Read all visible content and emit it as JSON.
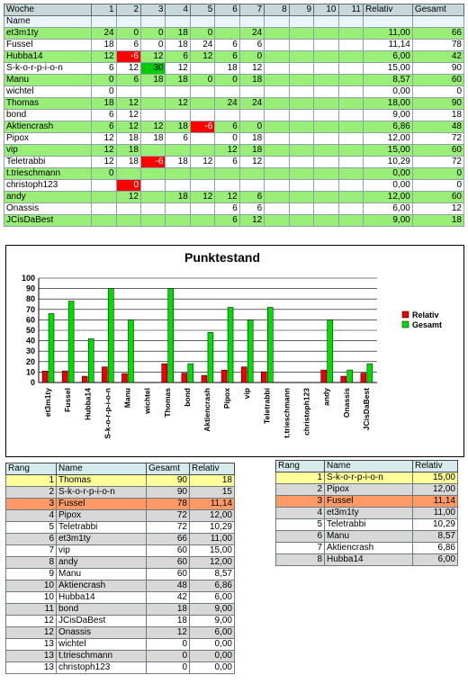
{
  "table": {
    "header": {
      "woche": "Woche",
      "weeks": [
        "1",
        "2",
        "3",
        "4",
        "5",
        "6",
        "7",
        "8",
        "9",
        "10",
        "11"
      ],
      "relativ": "Relativ",
      "gesamt": "Gesamt"
    },
    "name_label": "Name",
    "rows": [
      {
        "name": "et3m1ty",
        "cells": [
          "24",
          "0",
          "0",
          "18",
          "0",
          "",
          "24",
          "",
          "",
          "",
          ""
        ],
        "relativ": "11,00",
        "gesamt": "66"
      },
      {
        "name": "Fussel",
        "cells": [
          "18",
          "6",
          "0",
          "18",
          "24",
          "6",
          "6",
          "",
          "",
          "",
          ""
        ],
        "relativ": "11,14",
        "gesamt": "78"
      },
      {
        "name": "Hubba14",
        "cells": [
          "12",
          "-6",
          "12",
          "6",
          "12",
          "6",
          "0",
          "",
          "",
          "",
          ""
        ],
        "relativ": "6,00",
        "gesamt": "42"
      },
      {
        "name": "S-k-o-r-p-i-o-n",
        "cells": [
          "6",
          "12",
          "30",
          "12",
          "",
          "18",
          "12",
          "",
          "",
          "",
          ""
        ],
        "relativ": "15,00",
        "gesamt": "90"
      },
      {
        "name": "Manu",
        "cells": [
          "0",
          "6",
          "18",
          "18",
          "0",
          "0",
          "18",
          "",
          "",
          "",
          ""
        ],
        "relativ": "8,57",
        "gesamt": "60"
      },
      {
        "name": "wichtel",
        "cells": [
          "0",
          "",
          "",
          "",
          "",
          "",
          "",
          "",
          "",
          "",
          ""
        ],
        "relativ": "0,00",
        "gesamt": "0"
      },
      {
        "name": "Thomas",
        "cells": [
          "18",
          "12",
          "",
          "12",
          "",
          "24",
          "24",
          "",
          "",
          "",
          ""
        ],
        "relativ": "18,00",
        "gesamt": "90"
      },
      {
        "name": "bond",
        "cells": [
          "6",
          "12",
          "",
          "",
          "",
          "",
          "",
          "",
          "",
          "",
          ""
        ],
        "relativ": "9,00",
        "gesamt": "18"
      },
      {
        "name": "Aktiencrash",
        "cells": [
          "6",
          "12",
          "12",
          "18",
          "-6",
          "6",
          "0",
          "",
          "",
          "",
          ""
        ],
        "relativ": "6,86",
        "gesamt": "48"
      },
      {
        "name": "Pipox",
        "cells": [
          "12",
          "18",
          "18",
          "6",
          "",
          "0",
          "18",
          "",
          "",
          "",
          ""
        ],
        "relativ": "12,00",
        "gesamt": "72"
      },
      {
        "name": "vip",
        "cells": [
          "12",
          "18",
          "",
          "",
          "",
          "12",
          "18",
          "",
          "",
          "",
          ""
        ],
        "relativ": "15,00",
        "gesamt": "60"
      },
      {
        "name": "Teletrabbi",
        "cells": [
          "12",
          "18",
          "-6",
          "18",
          "12",
          "6",
          "12",
          "",
          "",
          "",
          ""
        ],
        "relativ": "10,29",
        "gesamt": "72"
      },
      {
        "name": "t.trieschmann",
        "cells": [
          "0",
          "",
          "",
          "",
          "",
          "",
          "",
          "",
          "",
          "",
          ""
        ],
        "relativ": "0,00",
        "gesamt": "0"
      },
      {
        "name": "christoph123",
        "cells": [
          "",
          "0",
          "",
          "",
          "",
          "",
          "",
          "",
          "",
          "",
          ""
        ],
        "relativ": "0,00",
        "gesamt": "0"
      },
      {
        "name": "andy",
        "cells": [
          "",
          "12",
          "",
          "18",
          "12",
          "12",
          "6",
          "",
          "",
          "",
          ""
        ],
        "relativ": "12,00",
        "gesamt": "60"
      },
      {
        "name": "Onassis",
        "cells": [
          "",
          "",
          "",
          "",
          "",
          "6",
          "6",
          "",
          "",
          "",
          ""
        ],
        "relativ": "6,00",
        "gesamt": "12"
      },
      {
        "name": "JCisDaBest",
        "cells": [
          "",
          "",
          "",
          "",
          "",
          "6",
          "12",
          "",
          "",
          "",
          ""
        ],
        "relativ": "9,00",
        "gesamt": "18"
      }
    ]
  },
  "chart_data": {
    "type": "bar",
    "title": "Punktestand",
    "categories": [
      "et3m1ty",
      "Fussel",
      "Hubba14",
      "S-k-o-r-p-i-o-n",
      "Manu",
      "wichtel",
      "Thomas",
      "bond",
      "Aktiencrash",
      "Pipox",
      "vip",
      "Teletrabbi",
      "t.trieschmann",
      "christoph123",
      "andy",
      "Onassis",
      "JCisDaBest"
    ],
    "series": [
      {
        "name": "Relativ",
        "color": "#ee0000",
        "values": [
          11,
          11.14,
          6,
          15,
          8.57,
          0,
          18,
          9,
          6.86,
          12,
          15,
          10.29,
          0,
          0,
          12,
          6,
          9
        ]
      },
      {
        "name": "Gesamt",
        "color": "#00dd00",
        "values": [
          66,
          78,
          42,
          90,
          60,
          0,
          90,
          18,
          48,
          72,
          60,
          72,
          0,
          0,
          60,
          12,
          18
        ]
      }
    ],
    "ylim": [
      0,
      100
    ],
    "yticks": [
      "0",
      "10",
      "20",
      "30",
      "40",
      "50",
      "60",
      "70",
      "80",
      "90",
      "100"
    ],
    "grid": true,
    "legend": "right"
  },
  "ranking_full": {
    "headers": {
      "rang": "Rang",
      "name": "Name",
      "gesamt": "Gesamt",
      "relativ": "Relativ"
    },
    "rows": [
      {
        "rang": "1",
        "name": "Thomas",
        "gesamt": "90",
        "relativ": "18"
      },
      {
        "rang": "2",
        "name": "S-k-o-r-p-i-o-n",
        "gesamt": "90",
        "relativ": "15"
      },
      {
        "rang": "3",
        "name": "Fussel",
        "gesamt": "78",
        "relativ": "11,14"
      },
      {
        "rang": "4",
        "name": "Pipox",
        "gesamt": "72",
        "relativ": "12,00"
      },
      {
        "rang": "5",
        "name": "Teletrabbi",
        "gesamt": "72",
        "relativ": "10,29"
      },
      {
        "rang": "6",
        "name": "et3m1ty",
        "gesamt": "66",
        "relativ": "11,00"
      },
      {
        "rang": "7",
        "name": "vip",
        "gesamt": "60",
        "relativ": "15,00"
      },
      {
        "rang": "8",
        "name": "andy",
        "gesamt": "60",
        "relativ": "12,00"
      },
      {
        "rang": "9",
        "name": "Manu",
        "gesamt": "60",
        "relativ": "8,57"
      },
      {
        "rang": "10",
        "name": "Aktiencrash",
        "gesamt": "48",
        "relativ": "6,86"
      },
      {
        "rang": "10",
        "name": "Hubba14",
        "gesamt": "42",
        "relativ": "6,00"
      },
      {
        "rang": "11",
        "name": "bond",
        "gesamt": "18",
        "relativ": "9,00"
      },
      {
        "rang": "12",
        "name": "JCisDaBest",
        "gesamt": "18",
        "relativ": "9,00"
      },
      {
        "rang": "12",
        "name": "Onassis",
        "gesamt": "12",
        "relativ": "6,00"
      },
      {
        "rang": "13",
        "name": "wichtel",
        "gesamt": "0",
        "relativ": "0,00"
      },
      {
        "rang": "13",
        "name": "t.trieschmann",
        "gesamt": "0",
        "relativ": "0,00"
      },
      {
        "rang": "13",
        "name": "christoph123",
        "gesamt": "0",
        "relativ": "0,00"
      }
    ]
  },
  "ranking_top": {
    "headers": {
      "rang": "Rang",
      "name": "Name",
      "relativ": "Relativ"
    },
    "rows": [
      {
        "rang": "1",
        "name": "S-k-o-r-p-i-o-n",
        "relativ": "15,00"
      },
      {
        "rang": "2",
        "name": "Pipox",
        "relativ": "12,00"
      },
      {
        "rang": "3",
        "name": "Fussel",
        "relativ": "11,14"
      },
      {
        "rang": "4",
        "name": "et3m1ty",
        "relativ": "11,00"
      },
      {
        "rang": "5",
        "name": "Teletrabbi",
        "relativ": "10,29"
      },
      {
        "rang": "6",
        "name": "Manu",
        "relativ": "8,57"
      },
      {
        "rang": "7",
        "name": "Aktiencrash",
        "relativ": "6,86"
      },
      {
        "rang": "8",
        "name": "Hubba14",
        "relativ": "6,00"
      }
    ]
  }
}
